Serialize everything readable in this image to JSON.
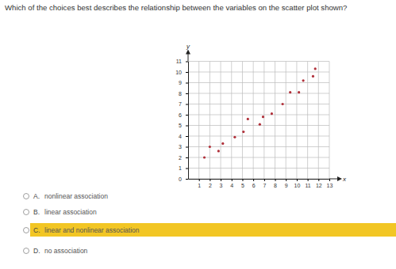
{
  "question": "Which of the choices best describes the relationship between the variables on the scatter plot shown?",
  "chart_data": {
    "type": "scatter",
    "x": [
      1.5,
      2,
      2.8,
      3.2,
      4.3,
      5.1,
      5.5,
      6.6,
      6.9,
      7.7,
      8.7,
      9.4,
      10.2,
      10.6,
      11.5,
      11.7
    ],
    "values": [
      2,
      3,
      2.6,
      3.3,
      3.9,
      4.4,
      5.6,
      5.1,
      5.8,
      6.1,
      7,
      8.1,
      8.1,
      9.2,
      9.6,
      10.3
    ],
    "x_label": "x",
    "y_label": "y",
    "xlim": [
      0,
      13
    ],
    "ylim": [
      0,
      11
    ],
    "xticks": [
      1,
      2,
      3,
      4,
      5,
      6,
      7,
      8,
      9,
      10,
      11,
      12,
      13
    ],
    "yticks": [
      0,
      1,
      2,
      3,
      4,
      5,
      6,
      7,
      8,
      9,
      10,
      11
    ],
    "grid": true,
    "color": "#b0303a",
    "marker": "circle"
  },
  "choices": [
    {
      "letter": "A.",
      "text": "nonlinear association"
    },
    {
      "letter": "B.",
      "text": "linear association"
    },
    {
      "letter": "C.",
      "text": "linear and nonlinear association"
    },
    {
      "letter": "D.",
      "text": "no association"
    }
  ],
  "selected_choice": 2
}
